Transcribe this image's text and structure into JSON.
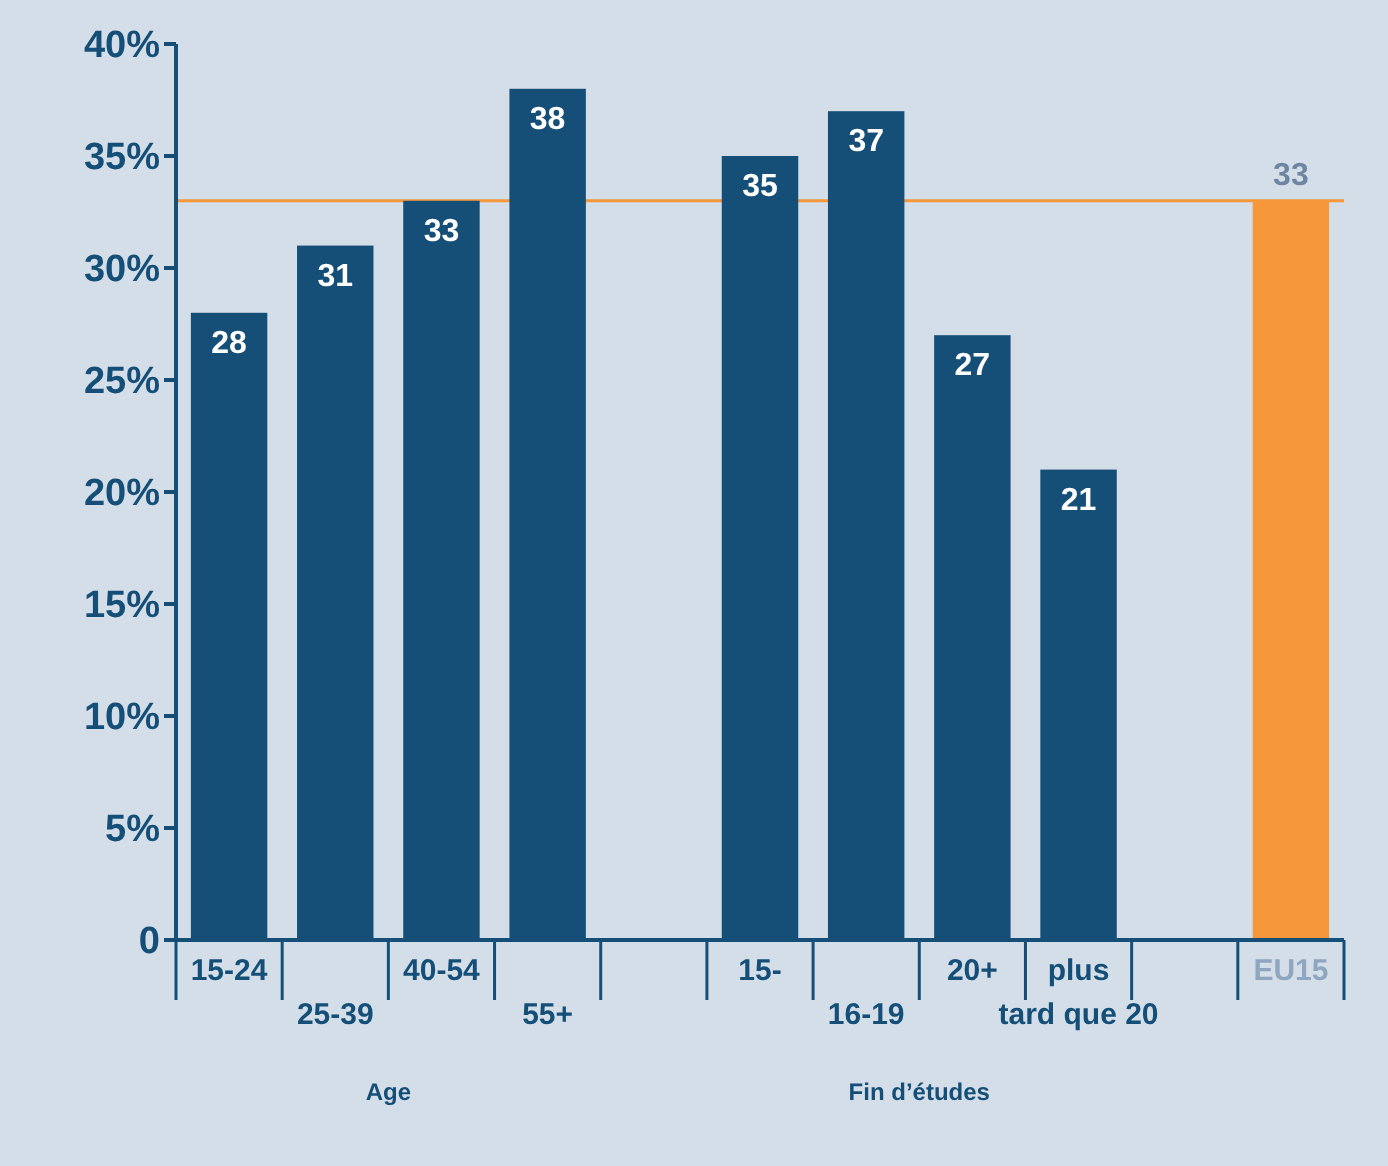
{
  "chart_data": {
    "type": "bar",
    "categories": [
      "15-24",
      "25-39",
      "40-54",
      "55+",
      null,
      "15-",
      "16-19",
      "20+",
      "plus tard que 20",
      null,
      "EU15"
    ],
    "values": [
      28,
      31,
      33,
      38,
      null,
      35,
      37,
      27,
      21,
      null,
      33
    ],
    "colors": [
      "#154f78",
      "#154f78",
      "#154f78",
      "#154f78",
      null,
      "#154f78",
      "#154f78",
      "#154f78",
      "#154f78",
      null,
      "#f5973a"
    ],
    "ylim": [
      0,
      40
    ],
    "yticks": [
      0,
      {
        "value": 5,
        "label": "5%"
      },
      {
        "value": 10,
        "label": "10%"
      },
      {
        "value": 15,
        "label": "15%"
      },
      {
        "value": 20,
        "label": "20%"
      },
      {
        "value": 25,
        "label": "25%"
      },
      {
        "value": 30,
        "label": "30%"
      },
      {
        "value": 35,
        "label": "35%"
      },
      {
        "value": 40,
        "label": "40%"
      }
    ],
    "data_labels": true,
    "grid": false,
    "ref_lines": [
      {
        "axis": "y",
        "value": 33,
        "color": "#f5973a"
      }
    ],
    "annotations": [
      "Age",
      "Fin d’études"
    ]
  }
}
